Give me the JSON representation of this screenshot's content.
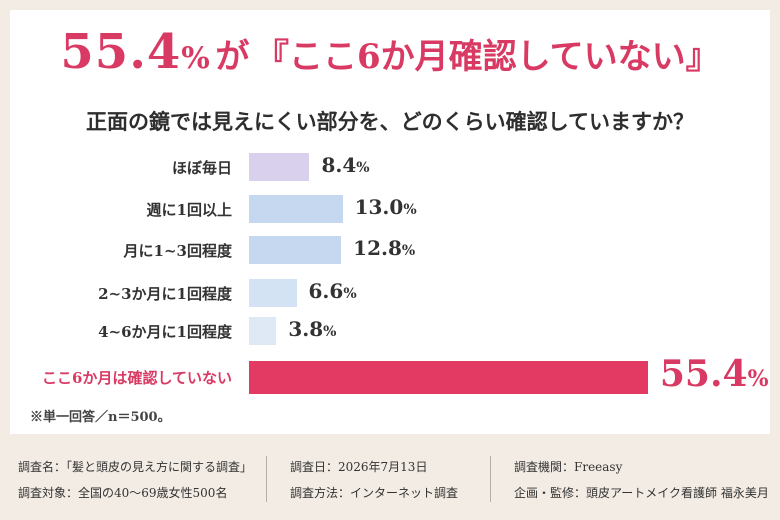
{
  "headline": {
    "value": "55.4",
    "percent_sign": "%",
    "connector": "が",
    "quote": "『ここ6か月確認していない』"
  },
  "question": "正面の鏡では見えにくい部分を、どのくらい確認していますか？",
  "chart_data": {
    "type": "bar",
    "orientation": "horizontal",
    "categories": [
      "ほぼ毎日",
      "週に1回以上",
      "月に1~3回程度",
      "2~3か月に1回程度",
      "4~6か月に1回程度",
      "ここ6か月は確認していない"
    ],
    "values": [
      8.4,
      13.0,
      12.8,
      6.6,
      3.8,
      55.4
    ],
    "value_labels": [
      "8.4",
      "13.0",
      "12.8",
      "6.6",
      "3.8",
      "55.4"
    ],
    "unit": "%",
    "colors": [
      "#d8d0ec",
      "#c6d8f0",
      "#c6d8f0",
      "#d3e3f4",
      "#dfe9f6",
      "#e23a62"
    ],
    "highlight_index": 5
  },
  "note": "※単一回答／n＝500。",
  "footer": {
    "survey_name": "調査名：「髪と頭皮の見え方に関する調査」",
    "survey_target": "調査対象：全国の40～69歳女性500名",
    "survey_date": "調査日：2026年7月13日",
    "survey_method": "調査方法：インターネット調査",
    "survey_agency": "調査機関：Freeasy",
    "supervision": "企画・監修：頭皮アートメイク看護師 福永美月"
  }
}
